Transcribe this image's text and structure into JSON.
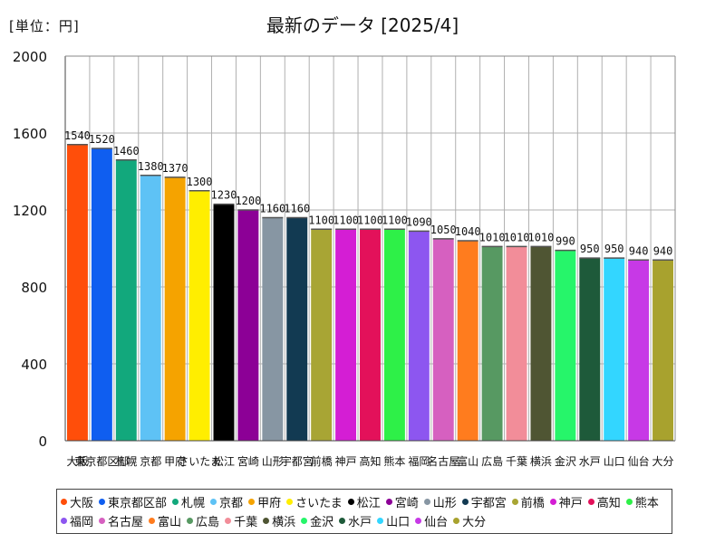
{
  "unit_label": "[単位：円]",
  "chart_data": {
    "type": "bar",
    "title": "最新のデータ [2025/4]",
    "ylim": [
      0,
      2000
    ],
    "yticks": [
      0,
      400,
      800,
      1200,
      1600,
      2000
    ],
    "grid": true,
    "legend_position": "bottom",
    "categories": [
      "大阪",
      "東京都区部",
      "札幌",
      "京都",
      "甲府",
      "さいたま",
      "松江",
      "宮崎",
      "山形",
      "宇都宮",
      "前橋",
      "神戸",
      "高知",
      "熊本",
      "福岡",
      "名古屋",
      "富山",
      "広島",
      "千葉",
      "横浜",
      "金沢",
      "水戸",
      "山口",
      "仙台",
      "大分"
    ],
    "values": [
      1540,
      1520,
      1460,
      1380,
      1370,
      1300,
      1230,
      1200,
      1160,
      1160,
      1100,
      1100,
      1100,
      1100,
      1090,
      1050,
      1040,
      1010,
      1010,
      1010,
      990,
      950,
      950,
      940,
      940
    ],
    "colors": [
      "#ff4e0a",
      "#0f5ef0",
      "#12a87c",
      "#5ec2f5",
      "#f5a300",
      "#ffee00",
      "#000000",
      "#8c0096",
      "#8796a3",
      "#123a52",
      "#a8a534",
      "#d41ed4",
      "#e3115a",
      "#2ef048",
      "#8d56f0",
      "#d660c0",
      "#ff7c1e",
      "#579962",
      "#f28d99",
      "#4f5533",
      "#26f56a",
      "#1e5a3a",
      "#33d6ff",
      "#c739e6",
      "#a8a22e"
    ]
  }
}
